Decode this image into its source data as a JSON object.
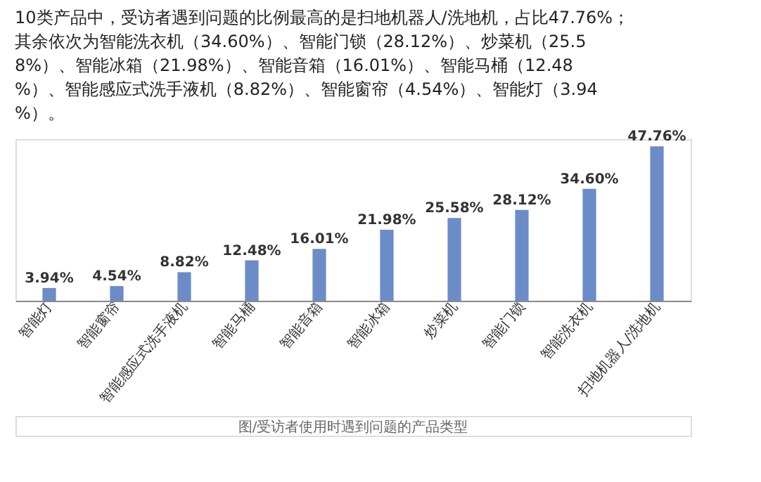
{
  "chart_data": {
    "type": "bar",
    "title": "10类产品中，受访者遇到问题的比例最高的是扫地机器人/洗地机，占比47.76%；其余依次为智能洗衣机（34.60%）、智能门锁（28.12%）、炒菜机（25.58%）、智能冰箱（21.98%）、智能音箱（16.01%）、智能马桶（12.48%）、智能感应式洗手液机（8.82%）、智能窗帘（4.54%）、智能灯（3.94%）。",
    "categories": [
      "智能灯",
      "智能窗帘",
      "智能感应式洗手液机",
      "智能马桶",
      "智能音箱",
      "智能冰箱",
      "炒菜机",
      "智能门锁",
      "智能洗衣机",
      "扫地机器人/洗地机"
    ],
    "values": [
      3.94,
      4.54,
      8.82,
      12.48,
      16.01,
      21.98,
      25.58,
      28.12,
      34.6,
      47.76
    ],
    "value_labels": [
      "3.94%",
      "4.54%",
      "8.82%",
      "12.48%",
      "16.01%",
      "21.98%",
      "25.58%",
      "28.12%",
      "34.60%",
      "47.76%"
    ],
    "color": "#6b8cc7",
    "annotations": [
      "图/受访者使用时遇到问题的产品类型"
    ]
  }
}
